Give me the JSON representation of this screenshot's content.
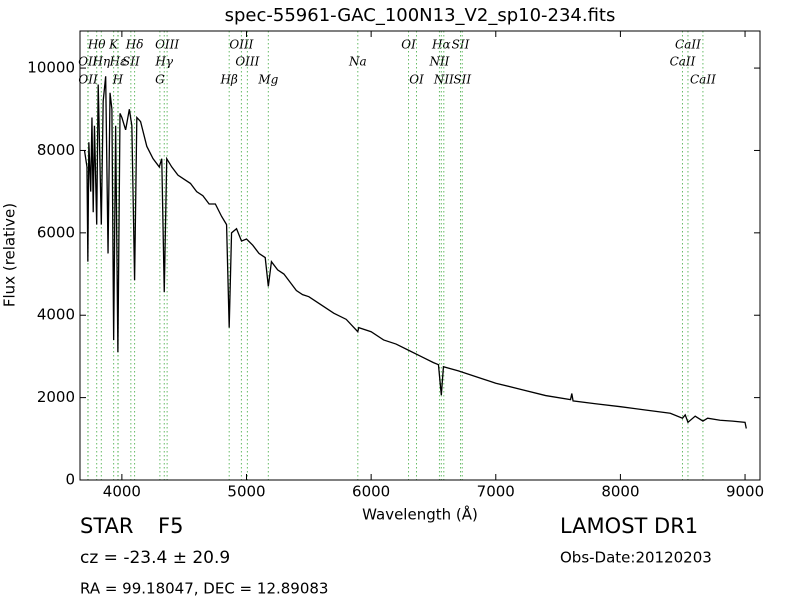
{
  "chart_data": {
    "type": "line",
    "title": "spec-55961-GAC_100N13_V2_sp10-234.fits",
    "x_label": "Wavelength (Å)",
    "y_label": "Flux (relative)",
    "xlim": [
      3664,
      9120
    ],
    "ylim": [
      0,
      10900
    ],
    "xticks": [
      4000,
      5000,
      6000,
      7000,
      8000,
      9000
    ],
    "yticks": [
      0,
      2000,
      4000,
      6000,
      8000,
      10000
    ],
    "line_color": "#000000",
    "marker_color": "#66bb66",
    "x": [
      3700,
      3720,
      3727,
      3735,
      3750,
      3760,
      3770,
      3780,
      3798,
      3810,
      3835,
      3850,
      3870,
      3889,
      3905,
      3920,
      3934,
      3950,
      3968,
      3985,
      4000,
      4030,
      4060,
      4080,
      4102,
      4120,
      4150,
      4200,
      4250,
      4300,
      4320,
      4340,
      4360,
      4400,
      4450,
      4500,
      4550,
      4600,
      4650,
      4700,
      4750,
      4800,
      4840,
      4861,
      4880,
      4920,
      4960,
      5000,
      5050,
      5100,
      5150,
      5175,
      5200,
      5250,
      5300,
      5350,
      5400,
      5450,
      5500,
      5600,
      5700,
      5800,
      5893,
      5900,
      6000,
      6100,
      6200,
      6300,
      6400,
      6500,
      6540,
      6563,
      6580,
      6700,
      6800,
      6900,
      7000,
      7200,
      7400,
      7600,
      7610,
      7620,
      7800,
      8000,
      8200,
      8400,
      8498,
      8520,
      8542,
      8600,
      8662,
      8700,
      8800,
      8900,
      9000,
      9010
    ],
    "values": [
      8000,
      7600,
      5300,
      8200,
      7000,
      8800,
      6500,
      8600,
      6200,
      9600,
      6200,
      9200,
      9800,
      5500,
      9400,
      9000,
      3400,
      8600,
      3100,
      8900,
      8800,
      8500,
      9000,
      8600,
      4850,
      8800,
      8700,
      8100,
      7800,
      7600,
      7800,
      4560,
      7800,
      7600,
      7400,
      7300,
      7200,
      7000,
      6900,
      6700,
      6700,
      6400,
      6200,
      3700,
      6000,
      6100,
      5800,
      5850,
      5700,
      5500,
      5400,
      4700,
      5300,
      5100,
      5000,
      4800,
      4600,
      4500,
      4450,
      4250,
      4050,
      3900,
      3600,
      3700,
      3600,
      3400,
      3300,
      3150,
      3000,
      2850,
      2800,
      2060,
      2750,
      2650,
      2550,
      2450,
      2350,
      2200,
      2050,
      1950,
      2100,
      1920,
      1850,
      1780,
      1700,
      1620,
      1500,
      1580,
      1400,
      1550,
      1430,
      1500,
      1450,
      1430,
      1400,
      1250
    ],
    "spectral_lines": [
      [
        {
          "label": "Hθ",
          "wavelength": 3798
        },
        {
          "label": "K",
          "wavelength": 3934
        },
        {
          "label": "Hδ",
          "wavelength": 4102
        },
        {
          "label": "OIII",
          "wavelength": 4363
        },
        {
          "label": "OIII",
          "wavelength": 4959
        },
        {
          "label": "OI",
          "wavelength": 6300
        },
        {
          "label": "Hα",
          "wavelength": 6563
        },
        {
          "label": "SII",
          "wavelength": 6717
        },
        {
          "label": "CaII",
          "wavelength": 8542
        }
      ],
      [
        {
          "label": "OII",
          "wavelength": 3727
        },
        {
          "label": "Hη",
          "wavelength": 3835
        },
        {
          "label": "Hε",
          "wavelength": 3970
        },
        {
          "label": "SII",
          "wavelength": 4072
        },
        {
          "label": "Hγ",
          "wavelength": 4340
        },
        {
          "label": "OIII",
          "wavelength": 5007
        },
        {
          "label": "Na",
          "wavelength": 5893
        },
        {
          "label": "NII",
          "wavelength": 6548
        },
        {
          "label": "CaII",
          "wavelength": 8498
        }
      ],
      [
        {
          "label": "OII",
          "wavelength": 3729
        },
        {
          "label": "H",
          "wavelength": 3968
        },
        {
          "label": "G",
          "wavelength": 4305
        },
        {
          "label": "Hβ",
          "wavelength": 4861
        },
        {
          "label": "Mg",
          "wavelength": 5175
        },
        {
          "label": "OI",
          "wavelength": 6364
        },
        {
          "label": "NII",
          "wavelength": 6583
        },
        {
          "label": "SII",
          "wavelength": 6731
        },
        {
          "label": "CaII",
          "wavelength": 8662
        }
      ]
    ]
  },
  "info": {
    "object_class": "STAR",
    "subclass": "F5",
    "redshift": "cz = -23.4 ± 20.9",
    "survey": "LAMOST DR1",
    "obs_date": "Obs-Date:20120203",
    "coordinates": "RA = 99.18047, DEC = 12.89083"
  }
}
